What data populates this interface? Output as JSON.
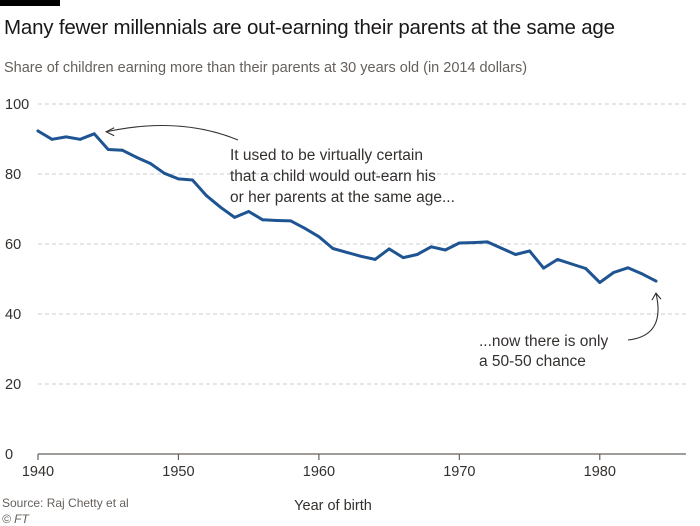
{
  "title": "Many fewer millennials are out-earning their parents at the same age",
  "subtitle": "Share of children earning more than their parents at 30 years old (in 2014 dollars)",
  "source": "Source: Raj Chetty et al",
  "credit": "© FT",
  "colors": {
    "line": "#1f5493",
    "grid": "#cccccc",
    "axis": "#66605c",
    "text": "#33302e"
  },
  "chart_data": {
    "type": "line",
    "xlabel": "Year of birth",
    "ylabel": "",
    "xlim": [
      1940,
      1985
    ],
    "ylim": [
      0,
      100
    ],
    "x_ticks": [
      1940,
      1950,
      1960,
      1970,
      1980
    ],
    "y_ticks": [
      0,
      20,
      40,
      60,
      80,
      100
    ],
    "grid": "horizontal dashed",
    "series": [
      {
        "x": [
          1940,
          1941,
          1942,
          1943,
          1944,
          1945,
          1946,
          1947,
          1948,
          1949,
          1950,
          1951,
          1952,
          1953,
          1954,
          1955,
          1956,
          1957,
          1958,
          1959,
          1960,
          1961,
          1962,
          1963,
          1964,
          1965,
          1966,
          1967,
          1968,
          1969,
          1970,
          1971,
          1972,
          1973,
          1974,
          1975,
          1976,
          1977,
          1978,
          1979,
          1980,
          1981,
          1982,
          1983,
          1984
        ],
        "values": [
          92.3,
          89.9,
          90.6,
          89.9,
          91.5,
          87.0,
          86.8,
          84.8,
          83.0,
          80.2,
          78.6,
          78.3,
          73.8,
          70.5,
          67.6,
          69.3,
          66.9,
          66.7,
          66.6,
          64.5,
          62.1,
          58.7,
          57.6,
          56.5,
          55.6,
          58.6,
          56.1,
          57.0,
          59.2,
          58.3,
          60.3,
          60.4,
          60.6,
          58.8,
          57.0,
          58.0,
          53.1,
          55.6,
          54.3,
          53.0,
          49.0,
          51.9,
          53.2,
          51.5,
          49.4
        ]
      }
    ],
    "annotations": [
      {
        "lines": [
          "It used to be virtually certain",
          "that a child would out-earn his",
          "or her parents at the same age..."
        ],
        "points_to": [
          1944,
          91.5
        ]
      },
      {
        "lines": [
          "...now there is only",
          "a 50-50 chance"
        ],
        "points_to": [
          1984,
          49.4
        ]
      }
    ]
  }
}
